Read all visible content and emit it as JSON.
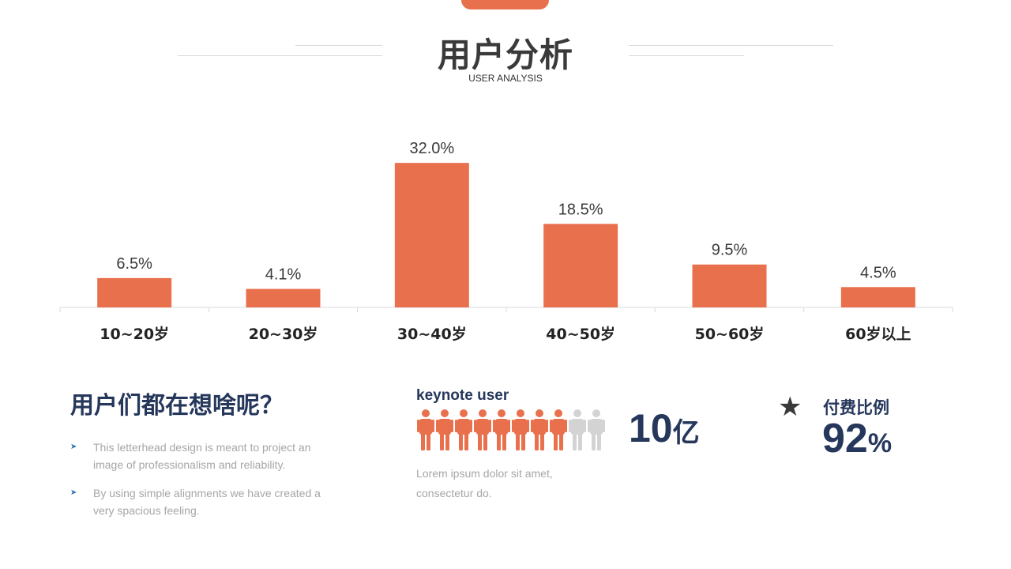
{
  "header": {
    "title": "用户分析",
    "subtitle": "USER ANALYSIS"
  },
  "colors": {
    "accent": "#e8704d",
    "navy": "#26375c",
    "muted": "#a6a6a6",
    "grey_person": "#d3d3d3"
  },
  "chart_data": {
    "type": "bar",
    "categories": [
      "10~20岁",
      "20~30岁",
      "30~40岁",
      "40~50岁",
      "50~60岁",
      "60岁以上"
    ],
    "values": [
      6.5,
      4.1,
      32.0,
      18.5,
      9.5,
      4.5
    ],
    "value_labels": [
      "6.5%",
      "4.1%",
      "32.0%",
      "18.5%",
      "9.5%",
      "4.5%"
    ],
    "ylim": [
      0,
      35
    ],
    "grid": false,
    "legend": "none"
  },
  "left_section": {
    "heading": "用户们都在想啥呢？",
    "bullet_icon": "arrow-right-icon",
    "bullets": [
      "This letterhead design is meant to project an image of professionalism and reliability.",
      "By using simple alignments we have created a very spacious feeling."
    ]
  },
  "keynote": {
    "title": "keynote user",
    "person_icon": "person-icon",
    "people_total": 10,
    "people_highlighted": 8,
    "number": "10",
    "unit": "亿",
    "desc": "Lorem ipsum dolor sit amet, consectetur do."
  },
  "payment": {
    "icon": "star-icon",
    "label": "付费比例",
    "value": "92",
    "unit": "%"
  }
}
